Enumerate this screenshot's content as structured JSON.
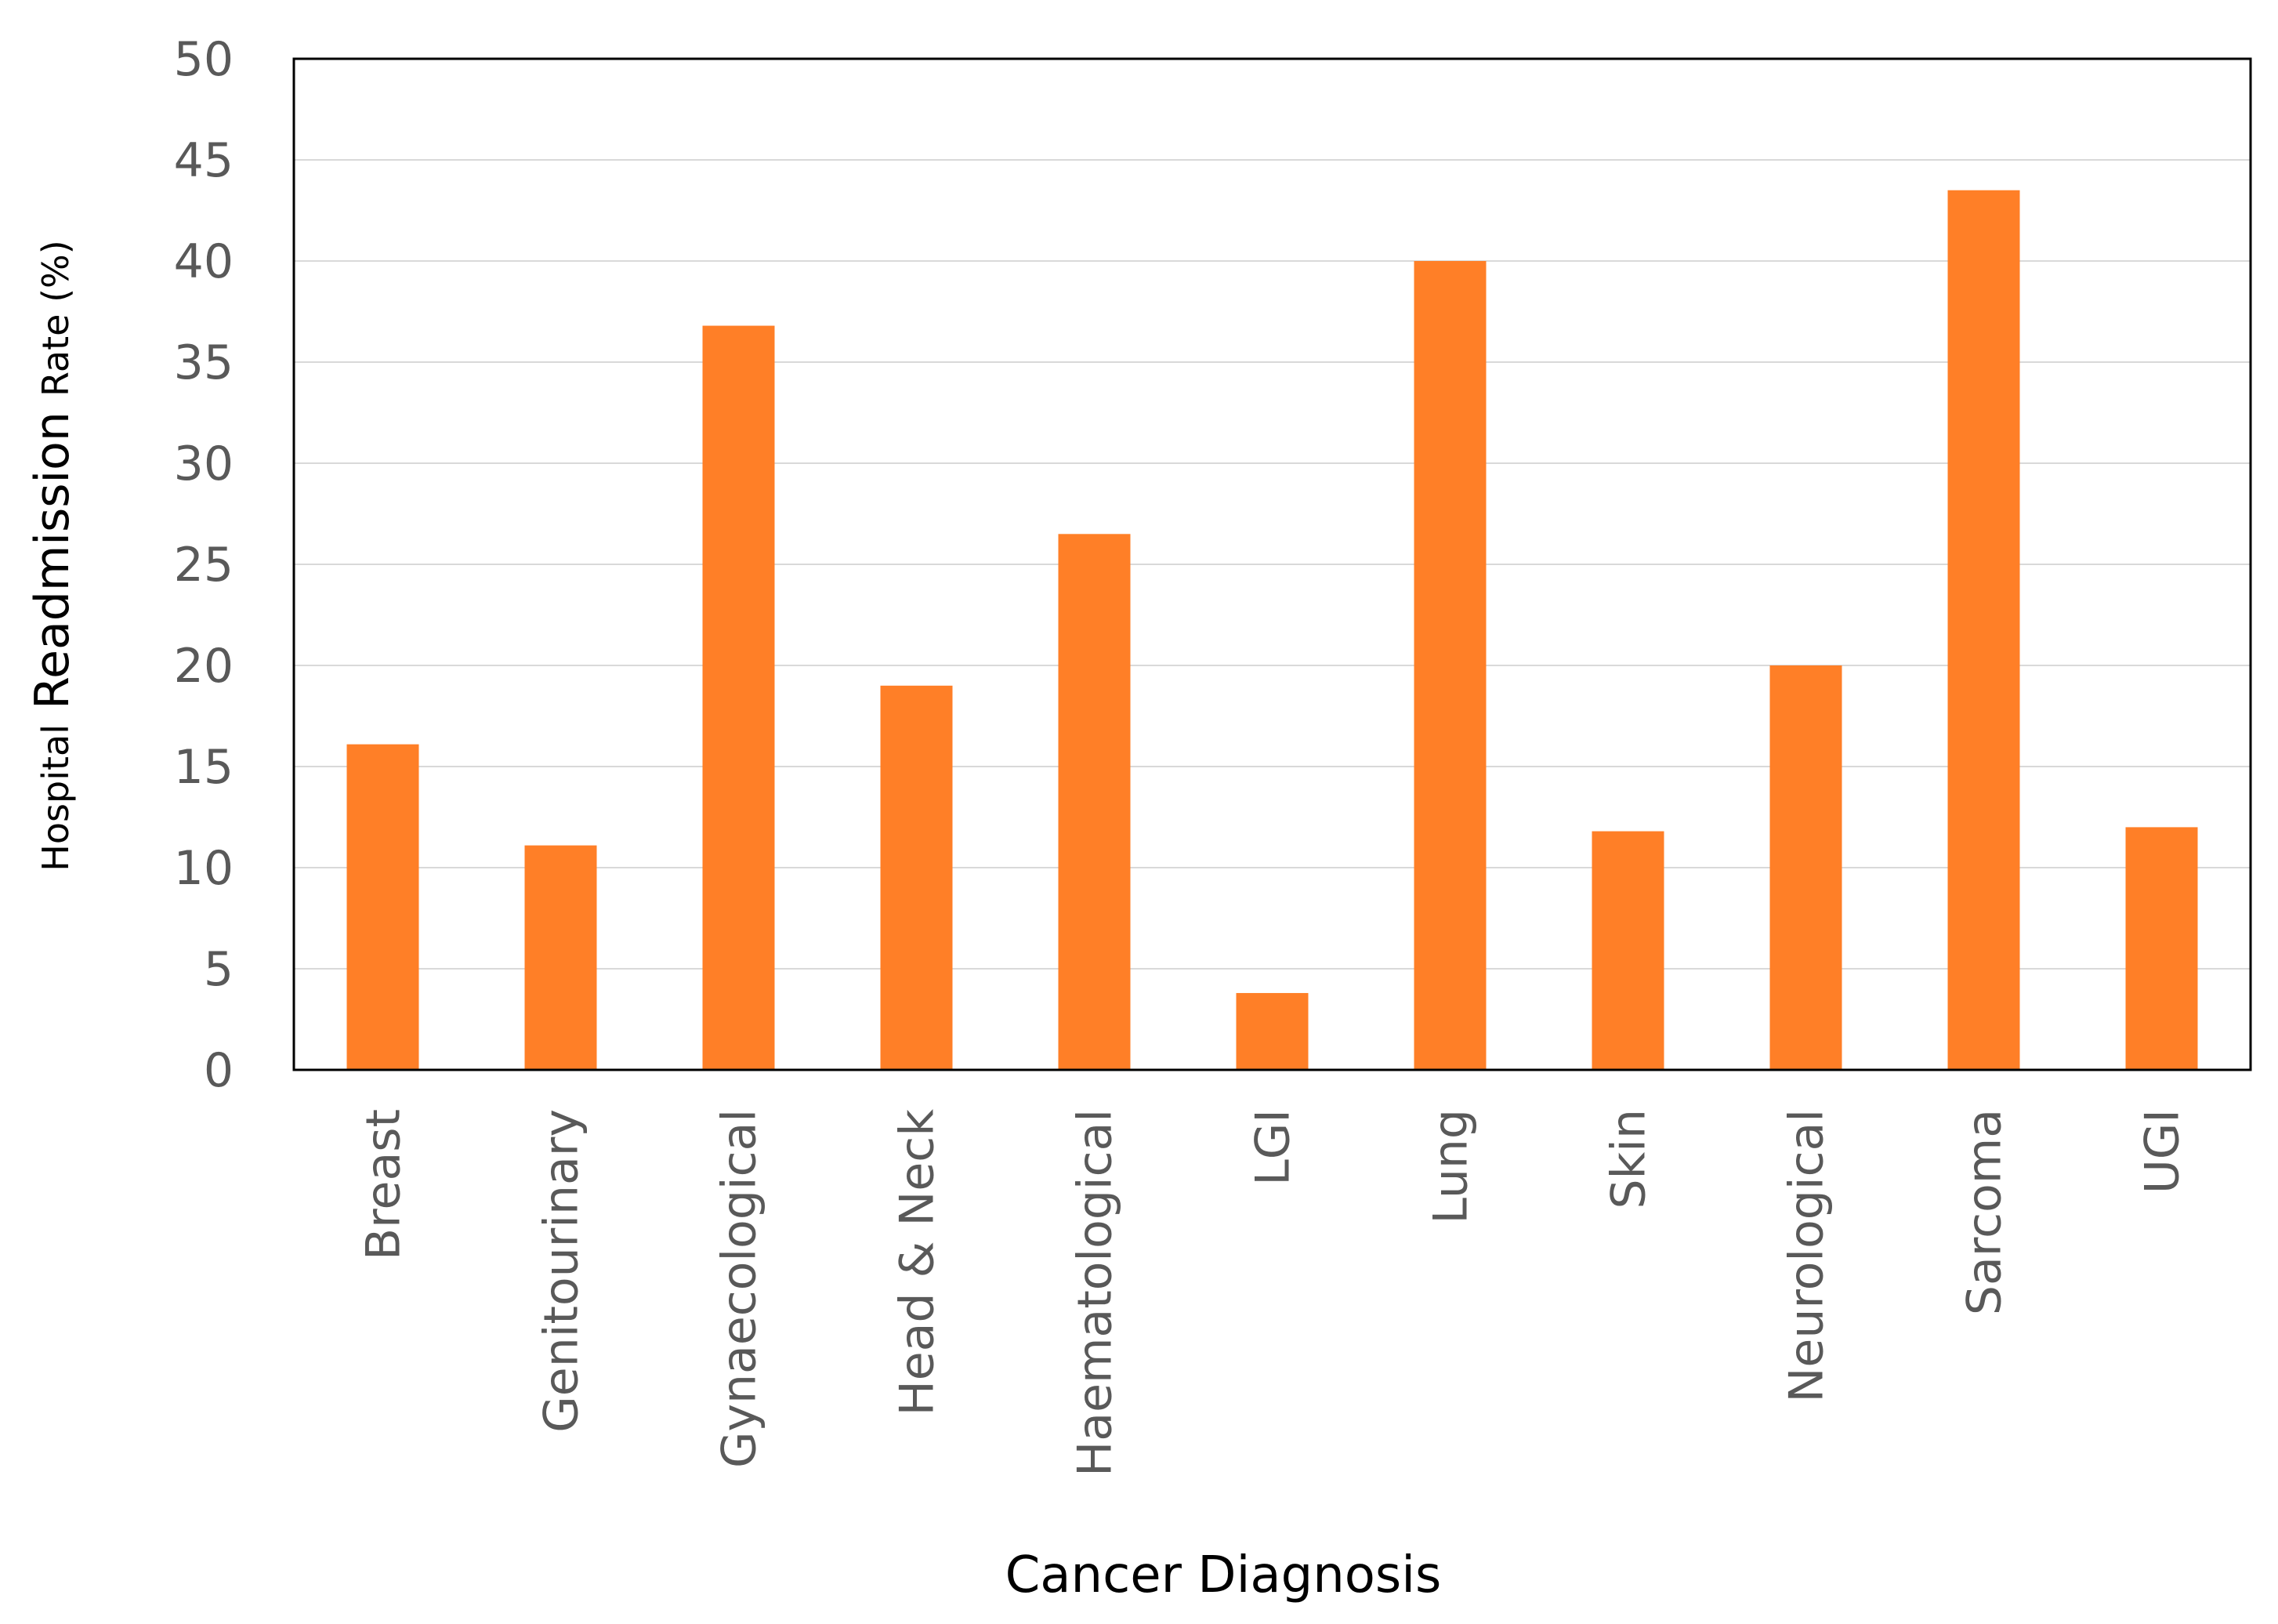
{
  "chart_data": {
    "type": "bar",
    "title": "",
    "xlabel": "Cancer Diagnosis",
    "ylabel": {
      "part1": "Hospital",
      "part2": "Readmission",
      "part3": "Rate (%)"
    },
    "categories": [
      "Breast",
      "Genitourinary",
      "Gynaecological",
      "Head & Neck",
      "Haematological",
      "LGI",
      "Lung",
      "Skin",
      "Neurological",
      "Sarcoma",
      "UGI"
    ],
    "values": [
      16.1,
      11.1,
      36.8,
      19.0,
      26.5,
      3.8,
      40.0,
      11.8,
      20.0,
      43.5,
      12.0
    ],
    "ylim": [
      0,
      50
    ],
    "yticks": [
      0,
      5,
      10,
      15,
      20,
      25,
      30,
      35,
      40,
      45,
      50
    ],
    "grid": true,
    "legend": "none",
    "colors": {
      "bar": "#FF7F27",
      "grid": "#D9D9D9",
      "axis": "#000000",
      "tick_text": "#595959"
    }
  }
}
